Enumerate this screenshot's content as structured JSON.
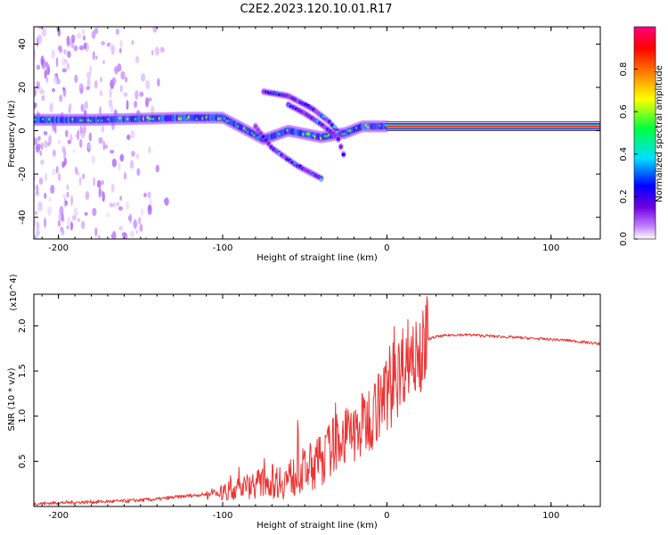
{
  "title": "C2E2.2023.120.10.01.R17",
  "chart_data": [
    {
      "type": "heatmap",
      "xlabel": "Height of straight line (km)",
      "ylabel": "Frequency (Hz)",
      "xlim": [
        -215,
        130
      ],
      "ylim": [
        -50,
        48
      ],
      "x_ticks": [
        -200,
        -100,
        0,
        100
      ],
      "y_ticks": [
        -40,
        -20,
        0,
        20,
        40
      ],
      "colorbar": {
        "label": "Normalized spectral amplitude",
        "range": [
          0,
          1
        ],
        "ticks": [
          "0.0",
          "0.2",
          "0.4",
          "0.6",
          "0.8"
        ],
        "colormap": [
          "#ffffff",
          "#c080ff",
          "#7000e0",
          "#0000ff",
          "#00e0ff",
          "#00ff40",
          "#ffff00",
          "#ff8000",
          "#ff0000",
          "#ff0080"
        ]
      },
      "ridges": [
        {
          "points": [
            [
              -215,
              5
            ],
            [
              -180,
              5
            ],
            [
              -120,
              6
            ],
            [
              -100,
              6
            ],
            [
              -85,
              0
            ],
            [
              -75,
              -4
            ],
            [
              -60,
              0
            ],
            [
              -40,
              -3
            ],
            [
              -25,
              -1
            ],
            [
              -15,
              2
            ],
            [
              0,
              2
            ],
            [
              130,
              2
            ]
          ]
        },
        {
          "points": [
            [
              -75,
              18
            ],
            [
              -60,
              16
            ],
            [
              -45,
              10
            ],
            [
              -35,
              4
            ],
            [
              -28,
              -2
            ]
          ]
        },
        {
          "points": [
            [
              -60,
              12
            ],
            [
              -50,
              8
            ],
            [
              -40,
              3
            ],
            [
              -30,
              -3
            ],
            [
              -25,
              -14
            ]
          ]
        },
        {
          "points": [
            [
              -80,
              2
            ],
            [
              -70,
              -8
            ],
            [
              -55,
              -16
            ],
            [
              -40,
              -22
            ]
          ]
        }
      ],
      "steady_band": {
        "x_from": 0,
        "x_to": 130,
        "frequency": 2
      }
    },
    {
      "type": "line",
      "xlabel": "Height of straight line (km)",
      "ylabel": "SNR (10 * v/v)",
      "y_multiplier": "(x10^4)",
      "xlim": [
        -215,
        130
      ],
      "ylim": [
        0,
        2.35
      ],
      "x_ticks": [
        -200,
        -100,
        0,
        100
      ],
      "y_ticks": [
        0.5,
        1.0,
        1.5,
        2.0
      ],
      "color": "#ee3333",
      "x": [
        -215,
        -200,
        -180,
        -160,
        -140,
        -120,
        -100,
        -90,
        -80,
        -70,
        -60,
        -50,
        -40,
        -30,
        -20,
        -10,
        0,
        5,
        10,
        15,
        20,
        25,
        30,
        40,
        50,
        60,
        70,
        80,
        90,
        100,
        110,
        120,
        130
      ],
      "y": [
        0.03,
        0.04,
        0.05,
        0.06,
        0.08,
        0.12,
        0.15,
        0.2,
        0.25,
        0.28,
        0.3,
        0.4,
        0.5,
        0.75,
        0.8,
        1.0,
        1.25,
        1.35,
        1.6,
        1.7,
        1.75,
        1.85,
        1.88,
        1.9,
        1.9,
        1.89,
        1.88,
        1.87,
        1.86,
        1.85,
        1.84,
        1.82,
        1.8
      ]
    }
  ]
}
